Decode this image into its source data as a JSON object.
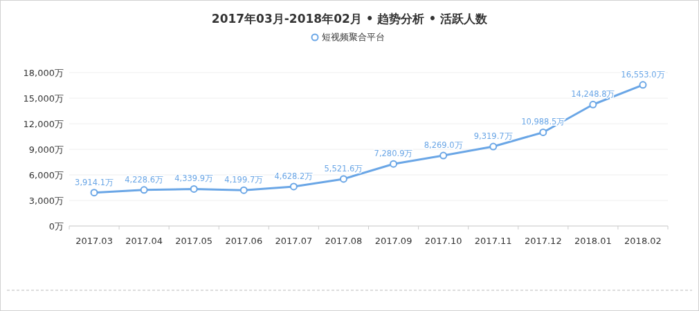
{
  "chart_data": {
    "type": "line",
    "title": "2017年03月-2018年02月 • 趋势分析 • 活跃人数",
    "categories": [
      "2017.03",
      "2017.04",
      "2017.05",
      "2017.06",
      "2017.07",
      "2017.08",
      "2017.09",
      "2017.10",
      "2017.11",
      "2017.12",
      "2018.01",
      "2018.02"
    ],
    "series": [
      {
        "name": "短视频聚合平台",
        "color": "#6aa6e6",
        "values": [
          3914.1,
          4228.6,
          4339.9,
          4199.7,
          4628.2,
          5521.6,
          7280.9,
          8269.0,
          9319.7,
          10988.5,
          14248.8,
          16553.0
        ],
        "value_labels": [
          "3,914.1万",
          "4,228.6万",
          "4,339.9万",
          "4,199.7万",
          "4,628.2万",
          "5,521.6万",
          "7,280.9万",
          "8,269.0万",
          "9,319.7万",
          "10,988.5万",
          "14,248.8万",
          "16,553.0万"
        ]
      }
    ],
    "ylim": [
      0,
      18000
    ],
    "yticks": [
      {
        "value": 0,
        "label": "0万"
      },
      {
        "value": 3000,
        "label": "3,000万"
      },
      {
        "value": 6000,
        "label": "6,000万"
      },
      {
        "value": 9000,
        "label": "9,000万"
      },
      {
        "value": 12000,
        "label": "12,000万"
      },
      {
        "value": 15000,
        "label": "15,000万"
      },
      {
        "value": 18000,
        "label": "18,000万"
      }
    ],
    "grid": "y",
    "legend": "top",
    "marker": "circle",
    "line_style": "solid"
  }
}
